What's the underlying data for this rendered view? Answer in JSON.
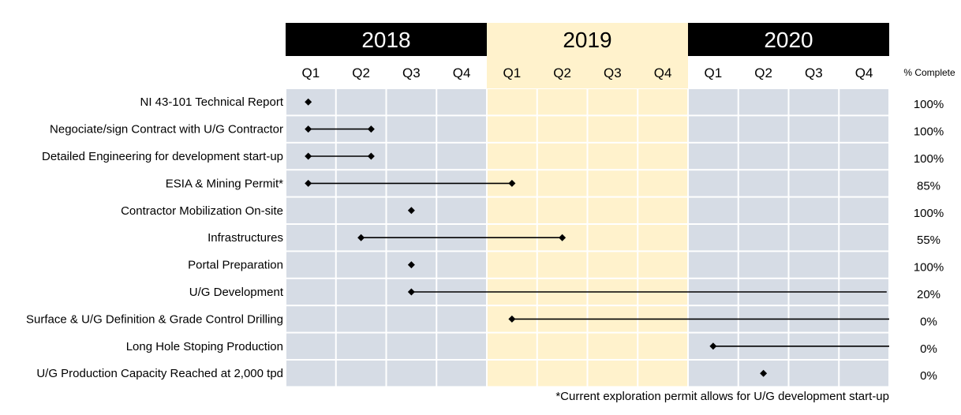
{
  "chart_data": {
    "type": "gantt",
    "years": [
      {
        "label": "2018",
        "highlight": false
      },
      {
        "label": "2019",
        "highlight": true
      },
      {
        "label": "2020",
        "highlight": false
      }
    ],
    "quarters": [
      "Q1",
      "Q2",
      "Q3",
      "Q4",
      "Q1",
      "Q2",
      "Q3",
      "Q4",
      "Q1",
      "Q2",
      "Q3",
      "Q4"
    ],
    "percent_header": "% Complete",
    "tasks": [
      {
        "name": "NI 43-101 Technical Report",
        "start": 0.45,
        "end": null,
        "extends": false,
        "percent": "100%"
      },
      {
        "name": "Negociate/sign Contract with U/G Contractor",
        "start": 0.45,
        "end": 1.7,
        "extends": false,
        "percent": "100%"
      },
      {
        "name": "Detailed Engineering for development start-up",
        "start": 0.45,
        "end": 1.7,
        "extends": false,
        "percent": "100%"
      },
      {
        "name": "ESIA & Mining Permit*",
        "start": 0.45,
        "end": 4.5,
        "extends": false,
        "percent": "85%"
      },
      {
        "name": "Contractor Mobilization On-site",
        "start": 2.5,
        "end": null,
        "extends": false,
        "percent": "100%"
      },
      {
        "name": "Infrastructures",
        "start": 1.5,
        "end": 5.5,
        "extends": false,
        "percent": "55%"
      },
      {
        "name": "Portal Preparation",
        "start": 2.5,
        "end": null,
        "extends": false,
        "percent": "100%"
      },
      {
        "name": "U/G Development",
        "start": 2.5,
        "end": 11.95,
        "extends": true,
        "percent": "20%"
      },
      {
        "name": "Surface & U/G Definition & Grade Control Drilling",
        "start": 4.5,
        "end": 12,
        "extends": true,
        "percent": "0%"
      },
      {
        "name": "Long Hole Stoping Production",
        "start": 8.5,
        "end": 12,
        "extends": true,
        "percent": "0%"
      },
      {
        "name": "U/G Production Capacity Reached at 2,000 tpd",
        "start": 9.5,
        "end": null,
        "extends": false,
        "percent": "0%"
      }
    ],
    "footnote": "*Current exploration permit allows for U/G development start-up",
    "colors": {
      "year_dark": "#000000",
      "year_dark_text": "#ffffff",
      "year_highlight": "#fff2cc",
      "year_highlight_text": "#000000",
      "cell": "#d6dce5",
      "cell_highlight": "#fff2cc",
      "grid": "#ffffff",
      "line": "#000000"
    }
  }
}
